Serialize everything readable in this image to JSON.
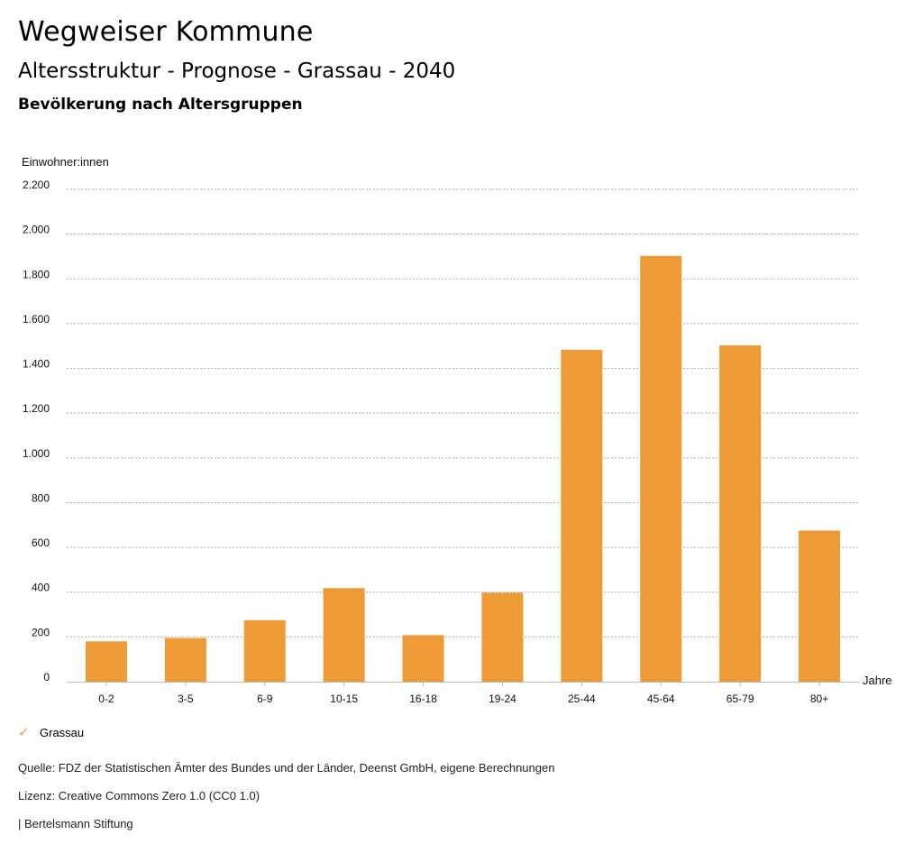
{
  "header": {
    "title": "Wegweiser Kommune",
    "subtitle": "Altersstruktur - Prognose - Grassau - 2040",
    "chart_title": "Bevölkerung nach Altersgruppen"
  },
  "colors": {
    "bar": "#ed9a37",
    "grid": "#aaaaaa",
    "axis": "#bbbbbb"
  },
  "chart_data": {
    "type": "bar",
    "title": "Bevölkerung nach Altersgruppen",
    "ylabel": "Einwohner:innen",
    "xlabel": "Jahre",
    "categories": [
      "0-2",
      "3-5",
      "6-9",
      "10-15",
      "16-18",
      "19-24",
      "25-44",
      "45-64",
      "65-79",
      "80+"
    ],
    "series": [
      {
        "name": "Grassau",
        "values": [
          180,
          195,
          275,
          418,
          208,
          398,
          1483,
          1903,
          1503,
          675
        ]
      }
    ],
    "ylim": [
      0,
      2200
    ],
    "yticks": [
      0,
      200,
      400,
      600,
      800,
      1000,
      1200,
      1400,
      1600,
      1800,
      2000,
      2200
    ],
    "ytick_labels": [
      "0",
      "200",
      "400",
      "600",
      "800",
      "1.000",
      "1.200",
      "1.400",
      "1.600",
      "1.800",
      "2.000",
      "2.200"
    ],
    "grid": true,
    "legend": "bottom-left"
  },
  "legend": {
    "icon": "check-icon",
    "label": "Grassau"
  },
  "footer": {
    "source": "Quelle: FDZ der Statistischen Ämter des Bundes und der Länder, Deenst GmbH, eigene Berechnungen",
    "license": "Lizenz: Creative Commons Zero 1.0 (CC0 1.0)",
    "publisher": "| Bertelsmann Stiftung"
  }
}
